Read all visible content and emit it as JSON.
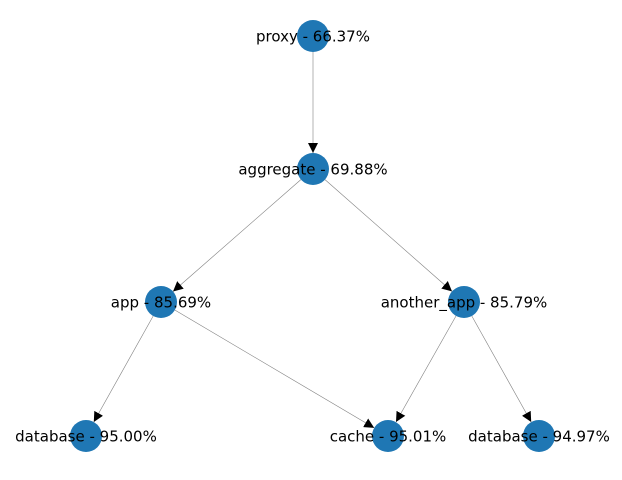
{
  "nodes": [
    {
      "label": "proxy - 66.37%"
    },
    {
      "label": "aggregate - 69.88%"
    },
    {
      "label": "app - 85.69%"
    },
    {
      "label": "another_app - 85.79%"
    },
    {
      "label": "database - 95.00%"
    },
    {
      "label": "cache - 95.01%"
    },
    {
      "label": "database - 94.97%"
    }
  ]
}
